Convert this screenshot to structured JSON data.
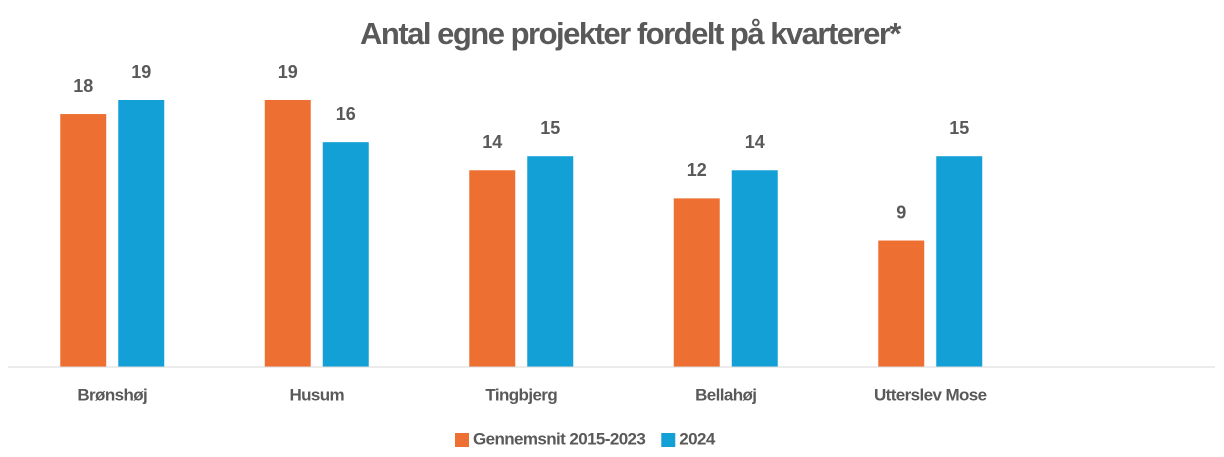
{
  "chart_data": {
    "type": "bar",
    "title": "Antal egne projekter fordelt på kvarterer*",
    "categories": [
      "Brønshøj",
      "Husum",
      "Tingbjerg",
      "Bellahøj",
      "Utterslev Mose"
    ],
    "series": [
      {
        "name": "Gennemsnit 2015-2023",
        "color": "#ED7032",
        "values": [
          18,
          19,
          14,
          12,
          9
        ]
      },
      {
        "name": "2024",
        "color": "#13A0D7",
        "values": [
          19,
          16,
          15,
          14,
          15
        ]
      }
    ],
    "ylim": [
      0,
      19
    ],
    "legend": "bottom"
  }
}
